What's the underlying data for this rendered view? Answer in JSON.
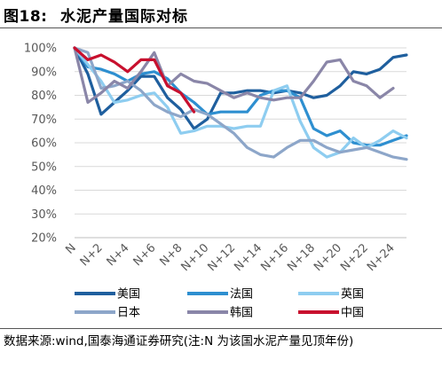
{
  "header": {
    "figure_label": "图18:",
    "figure_title": "水泥产量国际对标"
  },
  "source_note": "数据来源:wind,国泰海通证券研究(注:N 为该国水泥产量见顶年份)",
  "chart_data": {
    "type": "line",
    "x": [
      "N",
      "N+1",
      "N+2",
      "N+3",
      "N+4",
      "N+5",
      "N+6",
      "N+7",
      "N+8",
      "N+9",
      "N+10",
      "N+11",
      "N+12",
      "N+13",
      "N+14",
      "N+15",
      "N+16",
      "N+17",
      "N+18",
      "N+19",
      "N+20",
      "N+21",
      "N+22",
      "N+23",
      "N+24",
      "N+25"
    ],
    "x_tick_labels": [
      "N",
      "N+2",
      "N+4",
      "N+6",
      "N+8",
      "N+10",
      "N+12",
      "N+14",
      "N+16",
      "N+18",
      "N+20",
      "N+22",
      "N+24"
    ],
    "y_tick_labels": [
      "20%",
      "30%",
      "40%",
      "50%",
      "60%",
      "70%",
      "80%",
      "90%",
      "100%"
    ],
    "ylim": [
      20,
      100
    ],
    "ylabel_unit": "%",
    "grid": "horizontal",
    "legend_position": "bottom",
    "series": [
      {
        "name": "美国",
        "color": "#1f5f9e",
        "values": [
          100,
          89,
          72,
          77,
          82,
          88,
          88,
          79,
          74,
          66,
          70,
          81,
          81,
          82,
          82,
          81,
          82,
          81,
          79,
          80,
          84,
          90,
          89,
          91,
          96,
          97
        ]
      },
      {
        "name": "法国",
        "color": "#2e8fd0",
        "values": [
          100,
          92,
          91,
          89,
          86,
          89,
          90,
          87,
          81,
          77,
          72,
          73,
          73,
          73,
          80,
          82,
          82,
          79,
          66,
          63,
          65,
          60,
          59,
          59,
          61,
          63
        ]
      },
      {
        "name": "英国",
        "color": "#8ecdf0",
        "values": [
          100,
          93,
          86,
          77,
          78,
          80,
          81,
          75,
          64,
          65,
          67,
          67,
          66,
          67,
          67,
          82,
          84,
          69,
          58,
          54,
          56,
          62,
          58,
          61,
          65,
          62
        ]
      },
      {
        "name": "日本",
        "color": "#8da6c9",
        "values": [
          100,
          98,
          83,
          84,
          86,
          82,
          76,
          73,
          71,
          74,
          72,
          68,
          64,
          58,
          55,
          54,
          58,
          61,
          61,
          58,
          56,
          57,
          58,
          56,
          54,
          53
        ]
      },
      {
        "name": "韩国",
        "color": "#8a86a8",
        "values": [
          100,
          77,
          81,
          86,
          83,
          90,
          98,
          84,
          89,
          86,
          85,
          82,
          79,
          81,
          79,
          78,
          79,
          79,
          86,
          94,
          95,
          86,
          84,
          79,
          83,
          null
        ]
      },
      {
        "name": "中国",
        "color": "#c8102e",
        "values": [
          100,
          95,
          97,
          94,
          90,
          95,
          95,
          84,
          81,
          73,
          null,
          null,
          null,
          null,
          null,
          null,
          null,
          null,
          null,
          null,
          null,
          null,
          null,
          null,
          null,
          null
        ]
      }
    ]
  }
}
